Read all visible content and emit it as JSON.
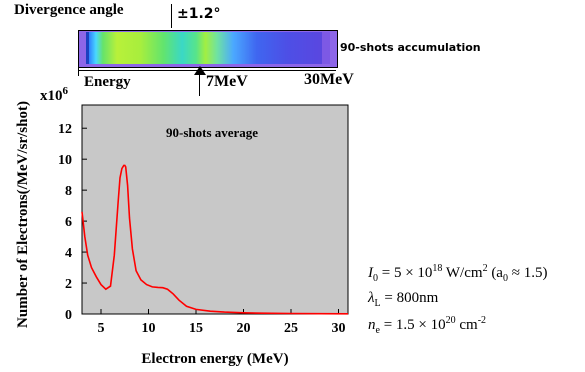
{
  "top_panel": {
    "divergence_label": "Divergence angle",
    "divergence_value": "±1.2°",
    "energy_label": "Energy",
    "marker_label": "7MeV",
    "end_label": "30MeV",
    "accumulation_label": "90-shots accumulation"
  },
  "formula": {
    "line1_lhs": "I",
    "line1_lhs_sub": "0",
    "line1_rhs": "= 5 × 10",
    "line1_exp": "18",
    "line1_unit": " W/cm",
    "line1_unit_exp": "2",
    "line1_paren": "(a",
    "line1_paren_sub": "0",
    "line1_paren_rest": " ≈ 1.5)",
    "line2_lhs": "λ",
    "line2_lhs_sub": "L",
    "line2_rhs": "= 800nm",
    "line3_lhs": "n",
    "line3_lhs_sub": "e",
    "line3_rhs": "= 1.5 × 10",
    "line3_exp": "20",
    "line3_unit": " cm",
    "line3_unit_exp": "-2"
  },
  "chart_data": {
    "type": "line",
    "title": "",
    "annotation": "90-shots average",
    "xlabel": "Electron energy (MeV)",
    "ylabel": "Number of Electrons(/MeV/sr/shot)",
    "scale_label": "x10",
    "scale_exp": "6",
    "xlim": [
      3,
      31
    ],
    "ylim": [
      0,
      13.5
    ],
    "xticks": [
      5,
      10,
      15,
      20,
      25,
      30
    ],
    "yticks": [
      0,
      2,
      4,
      6,
      8,
      10,
      12
    ],
    "grid": false,
    "colors": {
      "line": "#ff0000",
      "plot_bg": "#c8c8c8"
    },
    "series": [
      {
        "x": [
          3.0,
          3.3,
          3.6,
          4.0,
          4.5,
          5.0,
          5.5,
          6.0,
          6.4,
          6.8,
          7.0,
          7.2,
          7.4,
          7.5,
          7.6,
          7.8,
          8.0,
          8.3,
          8.7,
          9.2,
          9.8,
          10.4,
          11.0,
          11.5,
          12.0,
          12.6,
          13.2,
          14.0,
          15.0,
          16.5,
          18.0,
          20.0,
          22.0,
          25.0,
          28.0,
          31.0
        ],
        "y": [
          6.6,
          5.0,
          3.8,
          3.0,
          2.4,
          1.9,
          1.6,
          1.8,
          3.8,
          7.2,
          8.8,
          9.4,
          9.6,
          9.6,
          9.5,
          8.3,
          6.2,
          4.2,
          2.8,
          2.2,
          1.9,
          1.75,
          1.72,
          1.7,
          1.6,
          1.3,
          0.9,
          0.5,
          0.3,
          0.18,
          0.12,
          0.08,
          0.05,
          0.03,
          0.02,
          0.01
        ]
      }
    ]
  }
}
